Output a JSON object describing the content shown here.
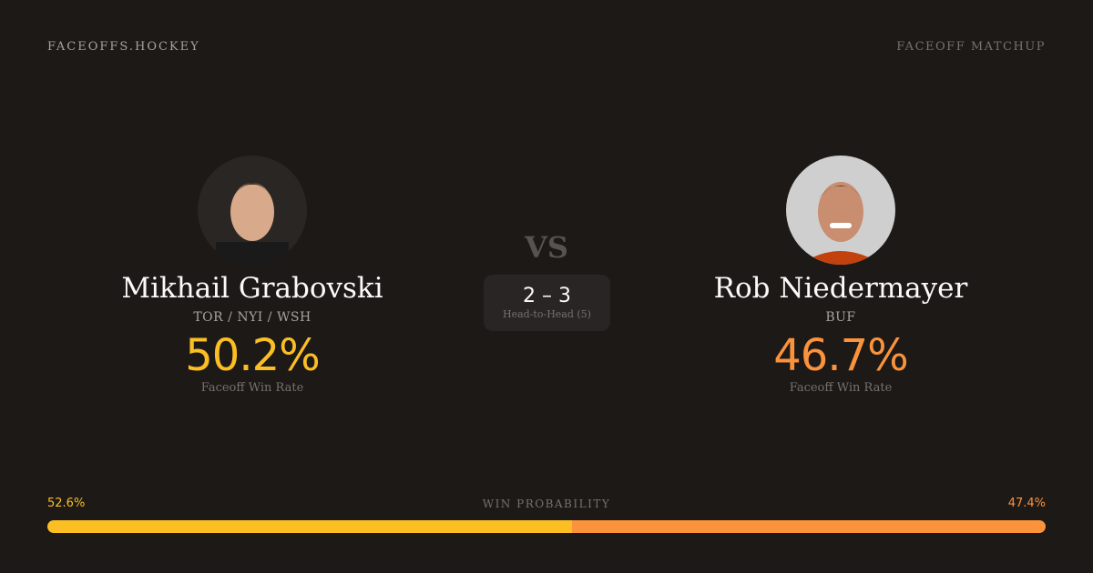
{
  "header": {
    "brand": "FACEOFFS.HOCKEY",
    "tag": "FACEOFF MATCHUP"
  },
  "players": [
    {
      "name": "Mikhail Grabovski",
      "teams": "TOR / NYI / WSH",
      "win_rate": "50.2%",
      "win_rate_label": "Faceoff Win Rate",
      "color": "#fbbf24"
    },
    {
      "name": "Rob Niedermayer",
      "teams": "BUF",
      "win_rate": "46.7%",
      "win_rate_label": "Faceoff Win Rate",
      "color": "#fb923c"
    }
  ],
  "vs": "VS",
  "head_to_head": {
    "score": "2 – 3",
    "label": "Head-to-Head (5)"
  },
  "win_probability": {
    "label": "WIN PROBABILITY",
    "left": "52.6%",
    "right": "47.4%",
    "left_value": 52.6,
    "right_value": 47.4
  }
}
